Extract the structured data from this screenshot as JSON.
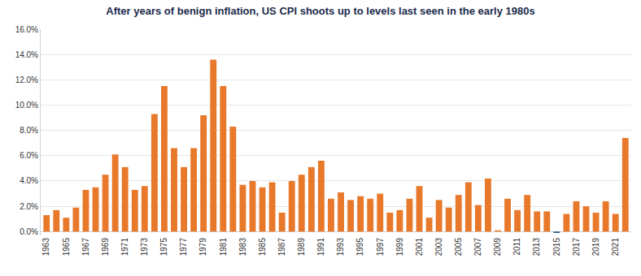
{
  "chart_data": {
    "type": "bar",
    "title": "After years of benign inflation, US CPI shoots up to levels last seen in the early 1980s",
    "categories": [
      "1963",
      null,
      "1965",
      null,
      "1967",
      null,
      "1969",
      null,
      "1971",
      null,
      "1973",
      null,
      "1975",
      null,
      "1977",
      null,
      "1979",
      null,
      "1981",
      null,
      "1983",
      null,
      "1985",
      null,
      "1987",
      null,
      "1989",
      null,
      "1991",
      null,
      "1993",
      null,
      "1995",
      null,
      "1997",
      null,
      "1999",
      null,
      "2001",
      null,
      "2003",
      null,
      "2005",
      null,
      "2007",
      null,
      "2009",
      null,
      "2011",
      null,
      "2013",
      null,
      "2015",
      null,
      "2017",
      null,
      "2019",
      null,
      "2021",
      null
    ],
    "values": [
      1.3,
      1.7,
      1.1,
      1.9,
      3.3,
      3.5,
      4.5,
      6.1,
      5.1,
      3.3,
      3.6,
      9.3,
      11.5,
      6.6,
      5.1,
      6.6,
      9.2,
      13.6,
      11.5,
      8.3,
      3.7,
      4.0,
      3.5,
      3.9,
      1.5,
      4.0,
      4.5,
      5.1,
      5.6,
      2.6,
      3.1,
      2.5,
      2.8,
      2.6,
      3.0,
      1.5,
      1.7,
      2.6,
      3.6,
      1.1,
      2.5,
      1.9,
      2.9,
      3.9,
      2.1,
      4.2,
      0.1,
      2.6,
      1.7,
      2.9,
      1.6,
      1.6,
      -0.1,
      1.4,
      2.4,
      2.0,
      1.5,
      2.4,
      1.4,
      7.4
    ],
    "colors": [
      "#e8782a",
      "#e8782a",
      "#e8782a",
      "#e8782a",
      "#e8782a",
      "#e8782a",
      "#e8782a",
      "#e8782a",
      "#e8782a",
      "#e8782a",
      "#e8782a",
      "#e8782a",
      "#e8782a",
      "#e8782a",
      "#e8782a",
      "#e8782a",
      "#e8782a",
      "#e8782a",
      "#e8782a",
      "#e8782a",
      "#e8782a",
      "#e8782a",
      "#e8782a",
      "#e8782a",
      "#e8782a",
      "#e8782a",
      "#e8782a",
      "#e8782a",
      "#e8782a",
      "#e8782a",
      "#e8782a",
      "#e8782a",
      "#e8782a",
      "#e8782a",
      "#e8782a",
      "#e8782a",
      "#e8782a",
      "#e8782a",
      "#e8782a",
      "#e8782a",
      "#e8782a",
      "#e8782a",
      "#e8782a",
      "#e8782a",
      "#e8782a",
      "#e8782a",
      "#e8782a",
      "#e8782a",
      "#e8782a",
      "#e8782a",
      "#e8782a",
      "#e8782a",
      "#1f4e79",
      "#e8782a",
      "#e8782a",
      "#e8782a",
      "#e8782a",
      "#e8782a",
      "#e8782a",
      "#e8782a"
    ],
    "ylim": [
      -0.3,
      16
    ],
    "yticks": [
      {
        "value": 0,
        "label": "0.0%"
      },
      {
        "value": 2,
        "label": "2.0%"
      },
      {
        "value": 4,
        "label": "4.0%"
      },
      {
        "value": 6,
        "label": "6.0%"
      },
      {
        "value": 8,
        "label": "8.0%"
      },
      {
        "value": 10,
        "label": "10.0%"
      },
      {
        "value": 12,
        "label": "12.0%"
      },
      {
        "value": 14,
        "label": "14.0%"
      },
      {
        "value": 16,
        "label": "16.0%"
      }
    ],
    "grid": true
  }
}
